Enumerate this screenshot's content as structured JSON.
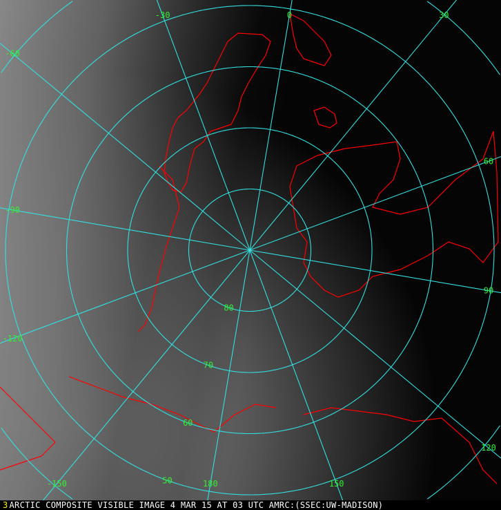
{
  "caption": {
    "frame_number": "3",
    "text": "ARCTIC COMPOSITE VISIBLE IMAGE 4 MAR 15 AT 03 UTC AMRC:(SSEC:UW-MADISON)"
  },
  "grid": {
    "color": "#33e0e0",
    "label_color": "#33ee33",
    "coastline_color": "#ff0000",
    "meridians": [
      {
        "lon": -30,
        "label": "-30"
      },
      {
        "lon": 0,
        "label": "0"
      },
      {
        "lon": 30,
        "label": "30"
      },
      {
        "lon": -60,
        "label": "-60"
      },
      {
        "lon": 60,
        "label": "60"
      },
      {
        "lon": -90,
        "label": "-90"
      },
      {
        "lon": 90,
        "label": "90"
      },
      {
        "lon": -120,
        "label": "-120"
      },
      {
        "lon": 120,
        "label": "120"
      },
      {
        "lon": -150,
        "label": "-150"
      },
      {
        "lon": 150,
        "label": "150"
      },
      {
        "lon": 180,
        "label": "180"
      }
    ],
    "parallels": [
      {
        "lat": 80,
        "label": "80"
      },
      {
        "lat": 70,
        "label": "70"
      },
      {
        "lat": 60,
        "label": "60"
      },
      {
        "lat": 50,
        "label": "50"
      },
      {
        "lat": 40,
        "label": ""
      }
    ]
  }
}
